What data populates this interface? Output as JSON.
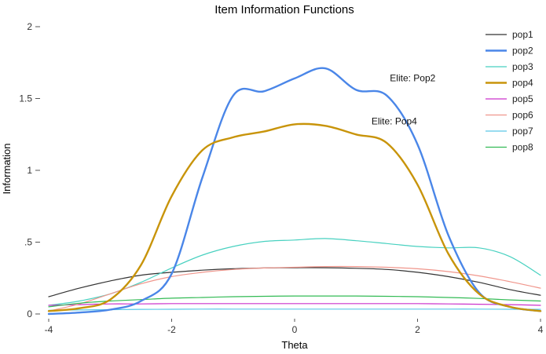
{
  "chart_data": {
    "type": "line",
    "title": "Item Information Functions",
    "xlabel": "Theta",
    "ylabel": "Information",
    "xlim": [
      -4,
      4
    ],
    "ylim": [
      0,
      2
    ],
    "x_ticks": [
      -4,
      -2,
      0,
      2,
      4
    ],
    "x_tick_labels": [
      "-4",
      "-2",
      "0",
      "2",
      "4"
    ],
    "y_ticks": [
      0,
      0.5,
      1,
      1.5,
      2
    ],
    "y_tick_labels": [
      "0",
      ".5",
      "1",
      "1.5",
      "2"
    ],
    "grid": false,
    "legend_position": "top-right",
    "x": [
      -4,
      -3.5,
      -3,
      -2.5,
      -2,
      -1.5,
      -1,
      -0.5,
      0,
      0.5,
      1,
      1.5,
      2,
      2.5,
      3,
      3.5,
      4
    ],
    "series": [
      {
        "name": "pop1",
        "color": "#333333",
        "width": 1.2,
        "values": [
          0.12,
          0.18,
          0.23,
          0.27,
          0.29,
          0.305,
          0.315,
          0.32,
          0.322,
          0.322,
          0.318,
          0.31,
          0.29,
          0.26,
          0.22,
          0.17,
          0.13
        ]
      },
      {
        "name": "pop2",
        "color": "#4a86e8",
        "width": 2.4,
        "values": [
          0.0,
          0.01,
          0.03,
          0.09,
          0.28,
          0.95,
          1.52,
          1.55,
          1.64,
          1.71,
          1.56,
          1.52,
          1.18,
          0.55,
          0.15,
          0.05,
          0.02
        ]
      },
      {
        "name": "pop3",
        "color": "#48d1c0",
        "width": 1.2,
        "values": [
          0.06,
          0.09,
          0.14,
          0.22,
          0.32,
          0.41,
          0.47,
          0.505,
          0.515,
          0.525,
          0.51,
          0.49,
          0.47,
          0.46,
          0.46,
          0.4,
          0.27
        ]
      },
      {
        "name": "pop4",
        "color": "#c8940a",
        "width": 2.4,
        "values": [
          0.02,
          0.04,
          0.1,
          0.34,
          0.82,
          1.14,
          1.23,
          1.27,
          1.32,
          1.31,
          1.25,
          1.19,
          0.9,
          0.42,
          0.14,
          0.05,
          0.02
        ]
      },
      {
        "name": "pop5",
        "color": "#cc33cc",
        "width": 1.2,
        "values": [
          0.06,
          0.065,
          0.07,
          0.07,
          0.072,
          0.072,
          0.072,
          0.072,
          0.072,
          0.072,
          0.072,
          0.072,
          0.072,
          0.07,
          0.068,
          0.065,
          0.06
        ]
      },
      {
        "name": "pop6",
        "color": "#f0968c",
        "width": 1.2,
        "values": [
          0.02,
          0.07,
          0.14,
          0.21,
          0.26,
          0.29,
          0.31,
          0.32,
          0.325,
          0.33,
          0.33,
          0.325,
          0.315,
          0.295,
          0.265,
          0.225,
          0.18
        ]
      },
      {
        "name": "pop7",
        "color": "#5bc8e8",
        "width": 1.2,
        "values": [
          0.025,
          0.028,
          0.03,
          0.032,
          0.033,
          0.034,
          0.034,
          0.034,
          0.034,
          0.034,
          0.034,
          0.034,
          0.034,
          0.034,
          0.034,
          0.033,
          0.032
        ]
      },
      {
        "name": "pop8",
        "color": "#33bb55",
        "width": 1.2,
        "values": [
          0.05,
          0.075,
          0.09,
          0.1,
          0.11,
          0.115,
          0.12,
          0.123,
          0.125,
          0.125,
          0.125,
          0.123,
          0.12,
          0.115,
          0.108,
          0.098,
          0.09
        ]
      }
    ],
    "annotations": [
      {
        "text": "Elite: Pop2",
        "x": 1.55,
        "y": 1.62
      },
      {
        "text": "Elite: Pop4",
        "x": 1.25,
        "y": 1.32
      }
    ]
  }
}
